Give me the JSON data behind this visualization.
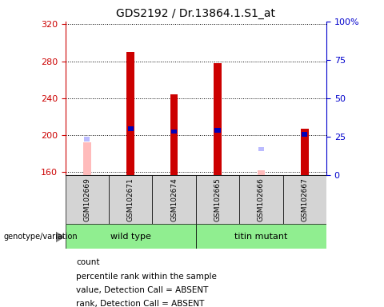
{
  "title": "GDS2192 / Dr.13864.1.S1_at",
  "samples": [
    "GSM102669",
    "GSM102671",
    "GSM102674",
    "GSM102665",
    "GSM102666",
    "GSM102667"
  ],
  "ylim_left": [
    157,
    323
  ],
  "ylim_right": [
    0,
    100
  ],
  "yticks_left": [
    160,
    200,
    240,
    280,
    320
  ],
  "yticks_right": [
    0,
    25,
    50,
    75,
    100
  ],
  "count_values": [
    null,
    290,
    244,
    278,
    null,
    207
  ],
  "rank_values": [
    null,
    207,
    204,
    205,
    null,
    201
  ],
  "absent_count": [
    192,
    null,
    null,
    null,
    162,
    null
  ],
  "absent_rank": [
    196,
    null,
    null,
    null,
    185,
    null
  ],
  "left_axis_color": "#cc0000",
  "right_axis_color": "#0000cc",
  "bar_color_count": "#cc0000",
  "bar_color_rank": "#0000bb",
  "bar_color_absent_count": "#ffbbbb",
  "bar_color_absent_rank": "#bbbbff",
  "wt_color": "#90EE90",
  "mut_color": "#90EE90",
  "title_fontsize": 10,
  "tick_fontsize": 8,
  "sample_fontsize": 6.5,
  "group_fontsize": 8,
  "legend_fontsize": 7.5
}
